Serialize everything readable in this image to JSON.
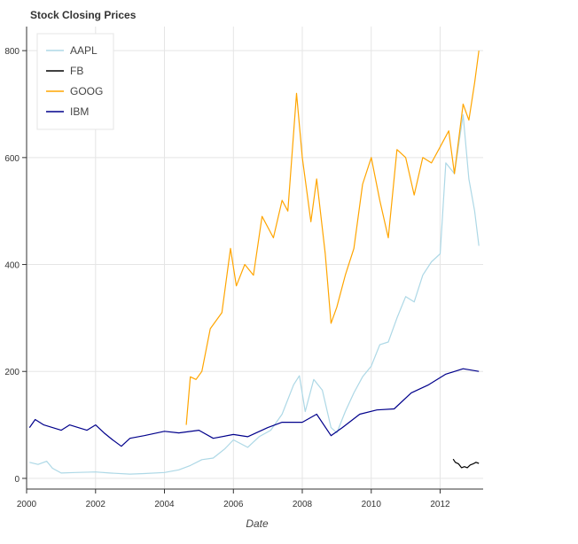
{
  "chart_data": {
    "type": "line",
    "title": "Stock Closing Prices",
    "xlabel": "Date",
    "ylabel": "",
    "x_type": "datetime",
    "xlim": [
      "2000-01-01",
      "2013-04-01"
    ],
    "ylim": [
      -20,
      845
    ],
    "x_ticks": [
      "2000",
      "2002",
      "2004",
      "2006",
      "2008",
      "2010",
      "2012"
    ],
    "y_ticks": [
      0,
      200,
      400,
      600,
      800
    ],
    "grid": true,
    "legend_position": "top-left",
    "series": [
      {
        "name": "AAPL",
        "color": "#add8e6",
        "points": [
          [
            "2000-02-01",
            30
          ],
          [
            "2000-05-01",
            26
          ],
          [
            "2000-08-01",
            32
          ],
          [
            "2000-10-01",
            19
          ],
          [
            "2001-01-01",
            10
          ],
          [
            "2001-06-01",
            11
          ],
          [
            "2002-01-01",
            12
          ],
          [
            "2002-06-01",
            10
          ],
          [
            "2003-01-01",
            8
          ],
          [
            "2003-06-01",
            9
          ],
          [
            "2004-01-01",
            11
          ],
          [
            "2004-06-01",
            16
          ],
          [
            "2004-10-01",
            24
          ],
          [
            "2005-02-01",
            35
          ],
          [
            "2005-06-01",
            38
          ],
          [
            "2005-10-01",
            55
          ],
          [
            "2006-01-01",
            72
          ],
          [
            "2006-06-01",
            58
          ],
          [
            "2006-10-01",
            78
          ],
          [
            "2007-02-01",
            90
          ],
          [
            "2007-06-01",
            120
          ],
          [
            "2007-10-01",
            175
          ],
          [
            "2007-12-01",
            192
          ],
          [
            "2008-02-01",
            125
          ],
          [
            "2008-05-01",
            185
          ],
          [
            "2008-08-01",
            165
          ],
          [
            "2008-11-01",
            95
          ],
          [
            "2009-01-01",
            85
          ],
          [
            "2009-04-01",
            125
          ],
          [
            "2009-07-01",
            160
          ],
          [
            "2009-10-01",
            190
          ],
          [
            "2010-01-01",
            210
          ],
          [
            "2010-04-01",
            250
          ],
          [
            "2010-07-01",
            255
          ],
          [
            "2010-10-01",
            300
          ],
          [
            "2011-01-01",
            340
          ],
          [
            "2011-04-01",
            330
          ],
          [
            "2011-07-01",
            380
          ],
          [
            "2011-10-01",
            405
          ],
          [
            "2012-01-01",
            420
          ],
          [
            "2012-03-01",
            590
          ],
          [
            "2012-06-01",
            570
          ],
          [
            "2012-09-01",
            680
          ],
          [
            "2012-11-01",
            560
          ],
          [
            "2013-01-01",
            500
          ],
          [
            "2013-02-15",
            435
          ]
        ]
      },
      {
        "name": "FB",
        "color": "#000000",
        "points": [
          [
            "2012-05-18",
            36
          ],
          [
            "2012-06-10",
            30
          ],
          [
            "2012-07-15",
            27
          ],
          [
            "2012-08-15",
            20
          ],
          [
            "2012-09-15",
            22
          ],
          [
            "2012-10-15",
            20
          ],
          [
            "2012-11-15",
            25
          ],
          [
            "2012-12-15",
            27
          ],
          [
            "2013-01-15",
            30
          ],
          [
            "2013-02-15",
            28
          ]
        ]
      },
      {
        "name": "GOOG",
        "color": "#ffa500",
        "points": [
          [
            "2004-08-19",
            100
          ],
          [
            "2004-10-01",
            190
          ],
          [
            "2004-12-01",
            185
          ],
          [
            "2005-02-01",
            200
          ],
          [
            "2005-05-01",
            280
          ],
          [
            "2005-09-01",
            310
          ],
          [
            "2005-12-01",
            430
          ],
          [
            "2006-02-01",
            360
          ],
          [
            "2006-05-01",
            400
          ],
          [
            "2006-08-01",
            380
          ],
          [
            "2006-11-01",
            490
          ],
          [
            "2007-03-01",
            450
          ],
          [
            "2007-06-01",
            520
          ],
          [
            "2007-08-01",
            500
          ],
          [
            "2007-11-01",
            720
          ],
          [
            "2008-01-01",
            600
          ],
          [
            "2008-04-01",
            480
          ],
          [
            "2008-06-01",
            560
          ],
          [
            "2008-09-01",
            420
          ],
          [
            "2008-11-01",
            290
          ],
          [
            "2009-01-01",
            320
          ],
          [
            "2009-04-01",
            380
          ],
          [
            "2009-07-01",
            430
          ],
          [
            "2009-10-01",
            550
          ],
          [
            "2010-01-01",
            600
          ],
          [
            "2010-04-01",
            520
          ],
          [
            "2010-07-01",
            450
          ],
          [
            "2010-10-01",
            615
          ],
          [
            "2011-01-01",
            600
          ],
          [
            "2011-04-01",
            530
          ],
          [
            "2011-07-01",
            600
          ],
          [
            "2011-10-01",
            590
          ],
          [
            "2012-01-01",
            620
          ],
          [
            "2012-04-01",
            650
          ],
          [
            "2012-06-01",
            570
          ],
          [
            "2012-09-01",
            700
          ],
          [
            "2012-11-01",
            670
          ],
          [
            "2013-01-01",
            740
          ],
          [
            "2013-02-15",
            800
          ]
        ]
      },
      {
        "name": "IBM",
        "color": "#00008b",
        "points": [
          [
            "2000-02-01",
            95
          ],
          [
            "2000-04-01",
            110
          ],
          [
            "2000-07-01",
            100
          ],
          [
            "2000-10-01",
            95
          ],
          [
            "2001-01-01",
            90
          ],
          [
            "2001-04-01",
            100
          ],
          [
            "2001-07-01",
            95
          ],
          [
            "2001-10-01",
            90
          ],
          [
            "2002-01-01",
            100
          ],
          [
            "2002-04-01",
            85
          ],
          [
            "2002-07-01",
            72
          ],
          [
            "2002-10-01",
            60
          ],
          [
            "2003-01-01",
            75
          ],
          [
            "2003-06-01",
            80
          ],
          [
            "2004-01-01",
            88
          ],
          [
            "2004-06-01",
            85
          ],
          [
            "2005-01-01",
            90
          ],
          [
            "2005-06-01",
            75
          ],
          [
            "2006-01-01",
            82
          ],
          [
            "2006-06-01",
            78
          ],
          [
            "2007-01-01",
            95
          ],
          [
            "2007-06-01",
            105
          ],
          [
            "2008-01-01",
            105
          ],
          [
            "2008-06-01",
            120
          ],
          [
            "2008-11-01",
            80
          ],
          [
            "2009-03-01",
            95
          ],
          [
            "2009-09-01",
            120
          ],
          [
            "2010-03-01",
            128
          ],
          [
            "2010-09-01",
            130
          ],
          [
            "2011-03-01",
            160
          ],
          [
            "2011-09-01",
            175
          ],
          [
            "2012-03-01",
            195
          ],
          [
            "2012-09-01",
            205
          ],
          [
            "2013-02-15",
            200
          ]
        ]
      }
    ]
  }
}
